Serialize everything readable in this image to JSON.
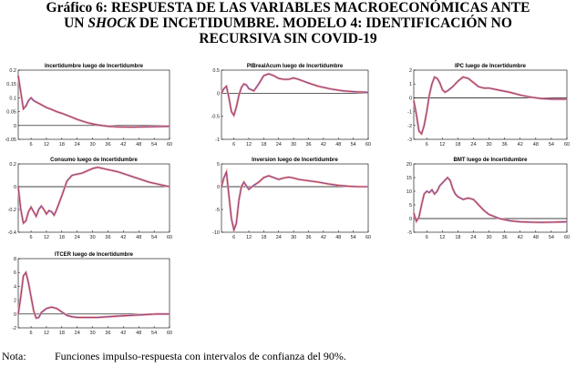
{
  "title": {
    "line1": "Gráfico 6: RESPUESTA DE LAS VARIABLES MACROECONÓMICAS ANTE",
    "line2_pre": "UN ",
    "line2_ital": "SHOCK",
    "line2_post": " DE INCETIDUMBRE. MODELO 4: IDENTIFICACIÓN NO",
    "line3": "RECURSIVA SIN COVID-19"
  },
  "note": {
    "label": "Nota:",
    "text": "Funciones impulso-respuesta con intervalos de confianza del 90%."
  },
  "chart_data": [
    {
      "type": "line",
      "title": "Incertidumbre luego de Incertidumbre",
      "xlim": [
        1,
        60
      ],
      "xticks": [
        6,
        12,
        18,
        24,
        30,
        36,
        42,
        48,
        54,
        60
      ],
      "ylim": [
        -0.05,
        0.2
      ],
      "yticks": [
        {
          "v": -0.05,
          "l": "-0.05"
        },
        {
          "v": 0,
          "l": "0"
        },
        {
          "v": 0.05,
          "l": "0.05"
        },
        {
          "v": 0.1,
          "l": "0.1"
        },
        {
          "v": 0.15,
          "l": "0.15"
        },
        {
          "v": 0.2,
          "l": "0.2"
        }
      ],
      "x": [
        1,
        2,
        3,
        4,
        5,
        6,
        7,
        8,
        9,
        10,
        12,
        14,
        16,
        18,
        20,
        24,
        28,
        32,
        36,
        40,
        45,
        50,
        55,
        60
      ],
      "y": [
        0.18,
        0.12,
        0.06,
        0.07,
        0.09,
        0.1,
        0.09,
        0.085,
        0.08,
        0.075,
        0.065,
        0.058,
        0.05,
        0.044,
        0.037,
        0.022,
        0.01,
        0.002,
        -0.003,
        -0.005,
        -0.006,
        -0.005,
        -0.004,
        -0.003
      ]
    },
    {
      "type": "line",
      "title": "PIBrealAcum luego de Incertidumbre",
      "xlim": [
        1,
        60
      ],
      "xticks": [
        6,
        12,
        18,
        24,
        30,
        36,
        42,
        48,
        54,
        60
      ],
      "ylim": [
        -1,
        0.5
      ],
      "yticks": [
        {
          "v": -1,
          "l": "-1"
        },
        {
          "v": -0.5,
          "l": "-0.5"
        },
        {
          "v": 0,
          "l": "0"
        },
        {
          "v": 0.5,
          "l": "0.5"
        }
      ],
      "x": [
        1,
        2,
        3,
        4,
        5,
        6,
        7,
        8,
        9,
        10,
        11,
        12,
        14,
        16,
        18,
        20,
        22,
        24,
        26,
        28,
        30,
        32,
        34,
        36,
        40,
        45,
        50,
        55,
        60
      ],
      "y": [
        0.0,
        0.1,
        0.15,
        -0.1,
        -0.4,
        -0.48,
        -0.3,
        -0.05,
        0.12,
        0.2,
        0.18,
        0.1,
        0.05,
        0.2,
        0.38,
        0.42,
        0.38,
        0.32,
        0.3,
        0.3,
        0.33,
        0.3,
        0.26,
        0.22,
        0.15,
        0.09,
        0.05,
        0.03,
        0.02
      ]
    },
    {
      "type": "line",
      "title": "IPC luego de Incertidumbre",
      "xlim": [
        1,
        60
      ],
      "xticks": [
        6,
        12,
        18,
        24,
        30,
        36,
        42,
        48,
        54,
        60
      ],
      "ylim": [
        -3,
        2
      ],
      "yticks": [
        {
          "v": -3,
          "l": "-3"
        },
        {
          "v": -2,
          "l": "-2"
        },
        {
          "v": -1,
          "l": "-1"
        },
        {
          "v": 0,
          "l": "0"
        },
        {
          "v": 1,
          "l": "1"
        },
        {
          "v": 2,
          "l": "2"
        }
      ],
      "x": [
        1,
        2,
        3,
        4,
        5,
        6,
        7,
        8,
        9,
        10,
        11,
        12,
        13,
        14,
        16,
        18,
        20,
        22,
        24,
        26,
        28,
        30,
        34,
        38,
        42,
        46,
        50,
        55,
        60
      ],
      "y": [
        -0.2,
        -1.2,
        -2.4,
        -2.6,
        -2.0,
        -1.0,
        0.2,
        1.0,
        1.5,
        1.4,
        1.1,
        0.6,
        0.4,
        0.5,
        0.8,
        1.2,
        1.5,
        1.4,
        1.1,
        0.8,
        0.7,
        0.7,
        0.55,
        0.4,
        0.2,
        0.05,
        -0.05,
        -0.1,
        -0.1
      ]
    },
    {
      "type": "line",
      "title": "Consumo luego de Incertidumbre",
      "xlim": [
        1,
        60
      ],
      "xticks": [
        6,
        12,
        18,
        24,
        30,
        36,
        42,
        48,
        54,
        60
      ],
      "ylim": [
        -0.4,
        0.2
      ],
      "yticks": [
        {
          "v": -0.4,
          "l": "-0.4"
        },
        {
          "v": -0.2,
          "l": "-0.2"
        },
        {
          "v": 0,
          "l": "0"
        },
        {
          "v": 0.2,
          "l": "0.2"
        }
      ],
      "x": [
        1,
        2,
        3,
        4,
        5,
        6,
        7,
        8,
        9,
        10,
        11,
        12,
        13,
        14,
        15,
        16,
        18,
        20,
        22,
        24,
        26,
        28,
        30,
        32,
        34,
        36,
        40,
        44,
        48,
        52,
        56,
        60
      ],
      "y": [
        0.0,
        -0.2,
        -0.32,
        -0.3,
        -0.22,
        -0.18,
        -0.22,
        -0.26,
        -0.2,
        -0.17,
        -0.2,
        -0.24,
        -0.21,
        -0.22,
        -0.25,
        -0.2,
        -0.08,
        0.05,
        0.1,
        0.11,
        0.12,
        0.14,
        0.16,
        0.17,
        0.16,
        0.15,
        0.13,
        0.1,
        0.07,
        0.04,
        0.02,
        0.0
      ]
    },
    {
      "type": "line",
      "title": "Inversion luego de Incertidumbre",
      "xlim": [
        1,
        60
      ],
      "xticks": [
        6,
        12,
        18,
        24,
        30,
        36,
        42,
        48,
        54,
        60
      ],
      "ylim": [
        -10,
        5
      ],
      "yticks": [
        {
          "v": -10,
          "l": "-10"
        },
        {
          "v": -5,
          "l": "-5"
        },
        {
          "v": 0,
          "l": "0"
        },
        {
          "v": 5,
          "l": "5"
        }
      ],
      "x": [
        1,
        2,
        3,
        4,
        5,
        6,
        7,
        8,
        9,
        10,
        11,
        12,
        14,
        16,
        18,
        20,
        22,
        24,
        26,
        28,
        30,
        32,
        36,
        40,
        44,
        48,
        52,
        56,
        60
      ],
      "y": [
        0.0,
        2.0,
        3.2,
        -2.0,
        -7.0,
        -9.5,
        -8.0,
        -3.0,
        0.0,
        1.0,
        0.2,
        -0.6,
        0.3,
        1.0,
        2.0,
        2.4,
        2.0,
        1.6,
        1.9,
        2.1,
        1.9,
        1.6,
        1.3,
        1.0,
        0.6,
        0.3,
        0.1,
        0.0,
        0.0
      ]
    },
    {
      "type": "line",
      "title": "BMT luego de Incertidumbre",
      "xlim": [
        1,
        60
      ],
      "xticks": [
        6,
        12,
        18,
        24,
        30,
        36,
        42,
        48,
        54,
        60
      ],
      "ylim": [
        -5,
        20
      ],
      "yticks": [
        {
          "v": -5,
          "l": "-5"
        },
        {
          "v": 0,
          "l": "0"
        },
        {
          "v": 5,
          "l": "5"
        },
        {
          "v": 10,
          "l": "10"
        },
        {
          "v": 15,
          "l": "15"
        },
        {
          "v": 20,
          "l": "20"
        }
      ],
      "x": [
        1,
        2,
        3,
        4,
        5,
        6,
        7,
        8,
        9,
        10,
        11,
        12,
        13,
        14,
        15,
        16,
        17,
        18,
        19,
        20,
        22,
        24,
        26,
        28,
        30,
        34,
        38,
        42,
        46,
        50,
        55,
        60
      ],
      "y": [
        2.0,
        -1.0,
        0.5,
        5.0,
        9.0,
        10.0,
        9.5,
        10.5,
        9.0,
        10.0,
        12.0,
        13.0,
        14.0,
        15.0,
        14.0,
        11.0,
        9.0,
        8.0,
        7.5,
        7.0,
        7.5,
        7.0,
        5.0,
        3.0,
        1.5,
        0.0,
        -0.8,
        -1.2,
        -1.3,
        -1.4,
        -1.3,
        -1.2
      ]
    },
    {
      "type": "line",
      "title": "ITCER luego de Incertidumbre",
      "xlim": [
        1,
        60
      ],
      "xticks": [
        6,
        12,
        18,
        24,
        30,
        36,
        42,
        48,
        54,
        60
      ],
      "ylim": [
        -2,
        8
      ],
      "yticks": [
        {
          "v": -2,
          "l": "-2"
        },
        {
          "v": 0,
          "l": "0"
        },
        {
          "v": 2,
          "l": "2"
        },
        {
          "v": 4,
          "l": "4"
        },
        {
          "v": 6,
          "l": "6"
        },
        {
          "v": 8,
          "l": "8"
        }
      ],
      "x": [
        1,
        2,
        3,
        4,
        5,
        6,
        7,
        8,
        9,
        10,
        12,
        14,
        16,
        18,
        20,
        22,
        24,
        28,
        32,
        36,
        40,
        45,
        50,
        55,
        60
      ],
      "y": [
        0.0,
        2.5,
        5.5,
        6.0,
        4.5,
        2.5,
        0.5,
        -0.6,
        -0.5,
        0.2,
        0.8,
        1.0,
        0.8,
        0.3,
        -0.2,
        -0.4,
        -0.5,
        -0.5,
        -0.5,
        -0.4,
        -0.3,
        -0.2,
        -0.1,
        0.0,
        0.0
      ]
    }
  ],
  "colors": {
    "band": "#f1a7a7",
    "irf": "#4a53c8",
    "mean": "#e0312e",
    "axis": "#000000",
    "zero": "#000000"
  }
}
